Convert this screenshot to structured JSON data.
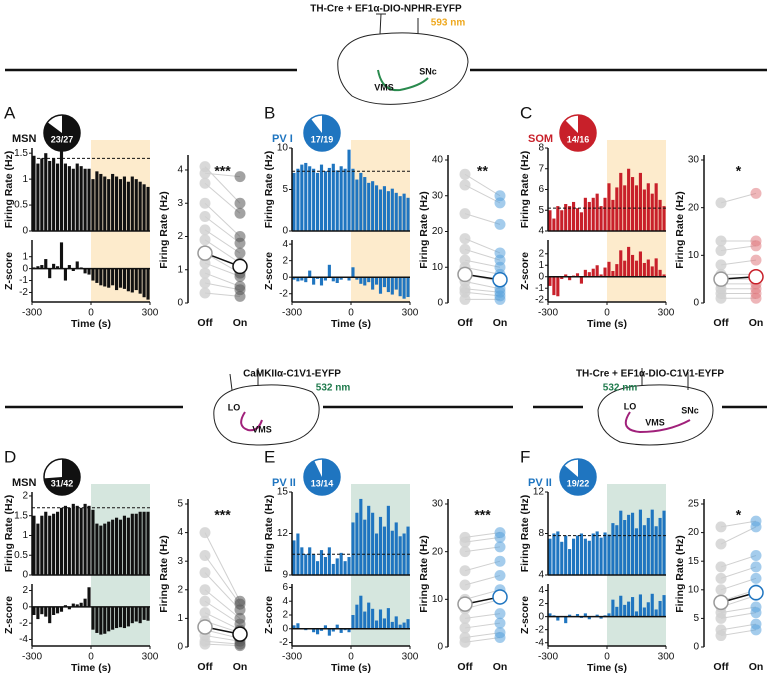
{
  "headers": [
    {
      "title": "TH-Cre + EF1α-DIO-NPHR-EYFP",
      "wavelength": "593 nm",
      "wave_color": "#eea81e",
      "labels": [
        "VMS",
        "SNc"
      ]
    },
    {
      "title": "CaMKIIα-C1V1-EYFP",
      "wavelength": "532 nm",
      "wave_color": "#1f7a4c",
      "labels": [
        "LO",
        "VMS"
      ]
    },
    {
      "title": "TH-Cre + EF1α-DIO-C1V1-EYFP",
      "wavelength": "532 nm",
      "wave_color": "#1f7a4c",
      "labels": [
        "LO",
        "VMS",
        "SNc"
      ]
    }
  ],
  "chart_data": [
    {
      "type": "psth",
      "panel": "A",
      "cell": "MSN",
      "pie_label": "23/27",
      "pie_values": [
        23,
        27
      ],
      "color": "#111111",
      "shade": "#fdebcc",
      "bins": [
        -300,
        -280,
        -260,
        -240,
        -220,
        -200,
        -180,
        -160,
        -140,
        -120,
        -100,
        -80,
        -60,
        -40,
        -20,
        0,
        20,
        40,
        60,
        80,
        100,
        120,
        140,
        160,
        180,
        200,
        220,
        240,
        260,
        280,
        300
      ],
      "xlim": [
        -300,
        300
      ],
      "xticks": [
        -300,
        0,
        300
      ],
      "xlabel": "Time (s)",
      "rate": {
        "ylabel": "Firing Rate (Hz)",
        "ylim": [
          0,
          1.6
        ],
        "yticks": [
          0,
          0.5,
          1,
          1.5
        ],
        "baseline": 1.4,
        "values": [
          1.45,
          1.3,
          1.4,
          1.5,
          1.35,
          1.4,
          1.3,
          1.55,
          1.3,
          1.25,
          1.2,
          1.3,
          1.25,
          1.2,
          1.2,
          1.0,
          1.15,
          1.1,
          1.05,
          1.0,
          1.1,
          1.05,
          1.0,
          1.05,
          0.95,
          1.05,
          1.0,
          0.95,
          0.9,
          0.85
        ]
      },
      "zscore": {
        "ylabel": "Z-score",
        "ylim": [
          -2.8,
          2.4
        ],
        "yticks": [
          -2,
          -1,
          0,
          1
        ],
        "values": [
          0.1,
          0.2,
          0.3,
          0.8,
          -0.8,
          0.4,
          0.2,
          2.2,
          -1.0,
          0.3,
          -0.2,
          0.6,
          0.1,
          -0.4,
          -0.5,
          -1.0,
          -1.2,
          -1.4,
          -1.5,
          -1.6,
          -1.4,
          -1.8,
          -1.6,
          -1.7,
          -1.9,
          -2.0,
          -1.8,
          -2.1,
          -2.4,
          -2.6
        ]
      },
      "paired": {
        "ylabel": "Firing Rate (Hz)",
        "ylim": [
          0,
          4.3
        ],
        "yticks": [
          0,
          1,
          2,
          3,
          4
        ],
        "categories": [
          "Off",
          "On"
        ],
        "significance": "***",
        "on_color": "#555555",
        "off": [
          4.1,
          3.9,
          3.6,
          3.0,
          2.6,
          2.2,
          1.9,
          1.5,
          1.2,
          0.9,
          0.6,
          0.3
        ],
        "on": [
          3.0,
          3.8,
          2.7,
          2.0,
          1.8,
          1.5,
          1.2,
          0.9,
          0.8,
          0.5,
          0.4,
          0.2
        ],
        "means": [
          1.5,
          1.1
        ]
      }
    },
    {
      "type": "psth",
      "panel": "B",
      "cell": "PV I",
      "pie_label": "17/19",
      "pie_values": [
        17,
        19
      ],
      "color": "#1f75c0",
      "shade": "#fdebcc",
      "bins": [
        -300,
        -280,
        -260,
        -240,
        -220,
        -200,
        -180,
        -160,
        -140,
        -120,
        -100,
        -80,
        -60,
        -40,
        -20,
        0,
        20,
        40,
        60,
        80,
        100,
        120,
        140,
        160,
        180,
        200,
        220,
        240,
        260,
        280,
        300
      ],
      "xlim": [
        -300,
        300
      ],
      "xticks": [
        -300,
        0,
        300
      ],
      "xlabel": "Time (s)",
      "rate": {
        "ylabel": "Firing Rate (Hz)",
        "ylim": [
          0,
          10
        ],
        "yticks": [
          0,
          5,
          10
        ],
        "baseline": 7.2,
        "values": [
          7,
          7.5,
          8,
          8.2,
          7.8,
          7.5,
          7,
          8,
          7.2,
          7.6,
          8.1,
          7.3,
          7.8,
          7.5,
          9.8,
          7.5,
          6.2,
          7.0,
          6.5,
          5.8,
          6,
          5.5,
          5.0,
          5.4,
          4.8,
          5.1,
          4.6,
          4.2,
          4.5,
          4.0
        ]
      },
      "zscore": {
        "ylabel": "Z-score",
        "ylim": [
          -3,
          4.5
        ],
        "yticks": [
          -2,
          0,
          2,
          4
        ],
        "values": [
          -0.3,
          -0.5,
          -0.4,
          -0.6,
          0.8,
          -0.9,
          -0.2,
          -1,
          -0.4,
          1.5,
          -0.5,
          -0.7,
          -0.3,
          -0.1,
          -0.4,
          1.2,
          -0.3,
          -0.8,
          -1.0,
          -0.6,
          -1.5,
          -0.9,
          -2,
          -1.2,
          -1.8,
          -2.1,
          -1.5,
          -2.3,
          -2.6,
          -2.4
        ]
      },
      "paired": {
        "ylabel": "Firing Rate (Hz)",
        "ylim": [
          0,
          40
        ],
        "yticks": [
          0,
          10,
          20,
          30,
          40
        ],
        "categories": [
          "Off",
          "On"
        ],
        "significance": "**",
        "on_color": "#5aa3dc",
        "off": [
          36,
          33,
          25,
          18,
          15,
          12,
          10,
          8,
          6,
          4,
          3,
          1
        ],
        "on": [
          30,
          28,
          22,
          14,
          12,
          10,
          8,
          6,
          4,
          3,
          2,
          1
        ],
        "means": [
          8,
          6.5
        ]
      }
    },
    {
      "type": "psth",
      "panel": "C",
      "cell": "SOM",
      "pie_label": "14/16",
      "pie_values": [
        14,
        16
      ],
      "color": "#c8202a",
      "shade": "#fdebcc",
      "bins": [
        -300,
        -280,
        -260,
        -240,
        -220,
        -200,
        -180,
        -160,
        -140,
        -120,
        -100,
        -80,
        -60,
        -40,
        -20,
        0,
        20,
        40,
        60,
        80,
        100,
        120,
        140,
        160,
        180,
        200,
        220,
        240,
        260,
        280,
        300
      ],
      "xlim": [
        -300,
        300
      ],
      "xticks": [
        -300,
        0,
        300
      ],
      "xlabel": "Time (s)",
      "rate": {
        "ylabel": "Firing Rate (Hz)",
        "ylim": [
          4,
          8
        ],
        "yticks": [
          4,
          5,
          6,
          7,
          8
        ],
        "baseline": 5.1,
        "values": [
          5,
          4.6,
          5.2,
          5.0,
          5.3,
          5.2,
          5.4,
          5.1,
          4.9,
          5.6,
          5.4,
          5.6,
          5.8,
          5.2,
          5.6,
          6.3,
          5.5,
          6.1,
          6.8,
          6.2,
          7.0,
          6.6,
          6.2,
          6.8,
          6.0,
          6.3,
          5.8,
          6.3,
          5.5,
          5.2
        ]
      },
      "zscore": {
        "ylabel": "Z-score",
        "ylim": [
          -2.2,
          3.2
        ],
        "yticks": [
          -2,
          -1,
          0,
          1,
          2
        ],
        "values": [
          -0.8,
          -1.6,
          -1.7,
          -0.2,
          0.2,
          -0.3,
          0.1,
          0.3,
          -0.6,
          0.6,
          0.4,
          0.7,
          1.0,
          0.2,
          0.8,
          1.3,
          0.5,
          1.1,
          2.3,
          1.4,
          2.6,
          1.9,
          1.4,
          2.2,
          1.2,
          1.5,
          0.9,
          1.6,
          0.6,
          0.2
        ]
      },
      "paired": {
        "ylabel": "Firing Rate (Hz)",
        "ylim": [
          0,
          30
        ],
        "yticks": [
          0,
          10,
          20,
          30
        ],
        "categories": [
          "Off",
          "On"
        ],
        "significance": "*",
        "on_color": "#e07a80",
        "off": [
          21,
          13,
          11,
          8,
          6,
          5,
          4,
          3,
          2,
          1
        ],
        "on": [
          23,
          13,
          12,
          9,
          6,
          5,
          4,
          3,
          2,
          1
        ],
        "means": [
          5,
          5.5
        ]
      }
    },
    {
      "type": "psth",
      "panel": "D",
      "cell": "MSN",
      "pie_label": "31/42",
      "pie_values": [
        31,
        42
      ],
      "color": "#111111",
      "shade": "#d5e6de",
      "bins": [
        -300,
        -280,
        -260,
        -240,
        -220,
        -200,
        -180,
        -160,
        -140,
        -120,
        -100,
        -80,
        -60,
        -40,
        -20,
        0,
        20,
        40,
        60,
        80,
        100,
        120,
        140,
        160,
        180,
        200,
        220,
        240,
        260,
        280,
        300
      ],
      "xlim": [
        -300,
        300
      ],
      "xticks": [
        -300,
        0,
        300
      ],
      "xlabel": "Time (s)",
      "rate": {
        "ylabel": "Firing Rate (Hz)",
        "ylim": [
          0,
          2.1
        ],
        "yticks": [
          0,
          0.5,
          1,
          1.5,
          2
        ],
        "baseline": 1.7,
        "values": [
          1.5,
          1.3,
          1.5,
          1.6,
          1.5,
          1.55,
          1.6,
          1.7,
          1.75,
          1.7,
          1.8,
          1.75,
          1.7,
          1.8,
          1.75,
          1.65,
          1.3,
          1.25,
          1.3,
          1.35,
          1.4,
          1.45,
          1.4,
          1.5,
          1.45,
          1.55,
          1.55,
          1.6,
          1.6,
          1.6
        ]
      },
      "zscore": {
        "ylabel": "Z-score",
        "ylim": [
          -4.8,
          2.8
        ],
        "yticks": [
          -4,
          -2,
          0,
          2
        ],
        "values": [
          -1,
          -1.5,
          -0.9,
          -1.2,
          -2,
          -1,
          -0.8,
          -0.6,
          0.2,
          -0.3,
          0.4,
          0.3,
          0.5,
          1.0,
          2.4,
          -2.8,
          -3.2,
          -3.4,
          -3.3,
          -3.0,
          -2.8,
          -2.6,
          -2.5,
          -2.6,
          -2.4,
          -2.0,
          -1.8,
          -2.0,
          -1.6,
          -1.7
        ]
      },
      "paired": {
        "ylabel": "Firing Rate (Hz)",
        "ylim": [
          0,
          5
        ],
        "yticks": [
          0,
          1,
          2,
          3,
          4,
          5
        ],
        "categories": [
          "Off",
          "On"
        ],
        "significance": "***",
        "on_color": "#555555",
        "off": [
          4.0,
          3.2,
          2.6,
          2.0,
          1.6,
          1.2,
          0.9,
          0.6,
          0.4,
          0.2,
          0.1
        ],
        "on": [
          1.6,
          1.5,
          1.3,
          1.0,
          0.8,
          0.6,
          0.5,
          0.3,
          0.2,
          0.1,
          0.05
        ],
        "means": [
          0.7,
          0.45
        ]
      }
    },
    {
      "type": "psth",
      "panel": "E",
      "cell": "PV II",
      "pie_label": "13/14",
      "pie_values": [
        13,
        14
      ],
      "color": "#1f75c0",
      "shade": "#d5e6de",
      "bins": [
        -300,
        -280,
        -260,
        -240,
        -220,
        -200,
        -180,
        -160,
        -140,
        -120,
        -100,
        -80,
        -60,
        -40,
        -20,
        0,
        20,
        40,
        60,
        80,
        100,
        120,
        140,
        160,
        180,
        200,
        220,
        240,
        260,
        280,
        300
      ],
      "xlim": [
        -300,
        300
      ],
      "xticks": [
        -300,
        0,
        300
      ],
      "xlabel": "Time (s)",
      "rate": {
        "ylabel": "Firing Rate (Hz)",
        "ylim": [
          9,
          15
        ],
        "yticks": [
          9,
          12,
          15
        ],
        "baseline": 10.5,
        "values": [
          11.5,
          12,
          11,
          10.5,
          11,
          10.5,
          10,
          10.8,
          10.3,
          11,
          9.8,
          10.2,
          10.6,
          10,
          10.3,
          12.8,
          13.5,
          14.5,
          13,
          14,
          13.5,
          12,
          13.2,
          12.5,
          14,
          12.2,
          12.8,
          11.8,
          12,
          12.5
        ]
      },
      "zscore": {
        "ylabel": "Z-score",
        "ylim": [
          -2.5,
          6.5
        ],
        "yticks": [
          -2,
          0,
          2,
          4,
          6
        ],
        "values": [
          0.5,
          0.8,
          0,
          -0.2,
          0.1,
          -0.5,
          -0.8,
          -0.3,
          0.5,
          -1,
          -0.4,
          0.6,
          -0.6,
          -0.2,
          -0.5,
          2,
          3.5,
          4.8,
          2.5,
          3.8,
          2.9,
          1.2,
          2.8,
          1.5,
          3.0,
          1.0,
          1.8,
          0.6,
          0.9,
          1.4
        ]
      },
      "paired": {
        "ylabel": "Firing Rate (Hz)",
        "ylim": [
          0,
          30
        ],
        "yticks": [
          0,
          10,
          20,
          30
        ],
        "categories": [
          "Off",
          "On"
        ],
        "significance": "***",
        "on_color": "#5aa3dc",
        "off": [
          23,
          22,
          20,
          16,
          13,
          10,
          8,
          6,
          4,
          2,
          1
        ],
        "on": [
          24,
          23,
          21,
          18,
          15,
          12,
          10,
          7,
          5,
          3,
          2
        ],
        "means": [
          9,
          10.5
        ]
      }
    },
    {
      "type": "psth",
      "panel": "F",
      "cell": "PV II",
      "pie_label": "19/22",
      "pie_values": [
        19,
        22
      ],
      "color": "#1f75c0",
      "shade": "#d5e6de",
      "bins": [
        -300,
        -280,
        -260,
        -240,
        -220,
        -200,
        -180,
        -160,
        -140,
        -120,
        -100,
        -80,
        -60,
        -40,
        -20,
        0,
        20,
        40,
        60,
        80,
        100,
        120,
        140,
        160,
        180,
        200,
        220,
        240,
        260,
        280,
        300
      ],
      "xlim": [
        -300,
        300
      ],
      "xticks": [
        -300,
        0,
        300
      ],
      "xlabel": "Time (s)",
      "rate": {
        "ylabel": "Firing Rate (Hz)",
        "ylim": [
          4,
          12
        ],
        "yticks": [
          4,
          8,
          12
        ],
        "baseline": 7.8,
        "values": [
          7.5,
          8,
          8.2,
          7.2,
          7.8,
          6.5,
          7.5,
          7.8,
          8,
          7.5,
          7.3,
          8,
          8.2,
          7.6,
          8.1,
          7.9,
          9,
          8.8,
          10.2,
          9.3,
          9.8,
          10,
          8.5,
          10.3,
          8.8,
          9.5,
          10.3,
          8.7,
          9.5,
          10.2
        ]
      },
      "zscore": {
        "ylabel": "Z-score",
        "ylim": [
          -4.5,
          5
        ],
        "yticks": [
          -4,
          -2,
          0,
          2,
          4
        ],
        "values": [
          0.5,
          0.2,
          -0.6,
          0.1,
          -1,
          0.3,
          0,
          0.4,
          -0.2,
          0.5,
          -0.4,
          0.1,
          0.3,
          -0.3,
          0.2,
          0.5,
          2.6,
          1.5,
          3.2,
          1.8,
          2.3,
          3.0,
          0.8,
          3.4,
          1.4,
          2.2,
          3.5,
          1.1,
          2.4,
          3.3
        ]
      },
      "paired": {
        "ylabel": "Firing Rate (Hz)",
        "ylim": [
          0,
          25
        ],
        "yticks": [
          0,
          5,
          10,
          15,
          20,
          25
        ],
        "categories": [
          "Off",
          "On"
        ],
        "significance": "*",
        "on_color": "#5aa3dc",
        "off": [
          21,
          18,
          14,
          12,
          10,
          8,
          7,
          6,
          5,
          3,
          2
        ],
        "on": [
          22,
          21,
          16,
          14,
          12,
          10,
          9,
          7,
          6,
          4,
          3
        ],
        "means": [
          7.8,
          9.5
        ]
      }
    }
  ]
}
